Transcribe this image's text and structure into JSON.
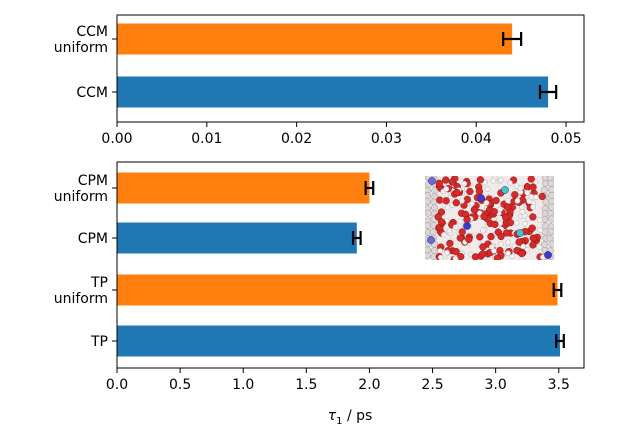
{
  "chart_data": [
    {
      "type": "bar",
      "orientation": "horizontal",
      "categories": [
        "CCM uniform",
        "CCM"
      ],
      "category_labels": [
        [
          "CCM",
          "uniform"
        ],
        [
          "CCM"
        ]
      ],
      "values": [
        0.044,
        0.048
      ],
      "errors": [
        0.001,
        0.0009
      ],
      "colors": [
        "#ff7f0e",
        "#1f77b4"
      ],
      "xlim": [
        0,
        0.052
      ],
      "xticks": [
        0.0,
        0.01,
        0.02,
        0.03,
        0.04,
        0.05
      ],
      "xtick_labels": [
        "0.00",
        "0.01",
        "0.02",
        "0.03",
        "0.04",
        "0.05"
      ],
      "xlabel": "",
      "ylabel": "",
      "grid": false
    },
    {
      "type": "bar",
      "orientation": "horizontal",
      "categories": [
        "CPM uniform",
        "CPM",
        "TP uniform",
        "TP"
      ],
      "category_labels": [
        [
          "CPM",
          "uniform"
        ],
        [
          "CPM"
        ],
        [
          "TP",
          "uniform"
        ],
        [
          "TP"
        ]
      ],
      "values": [
        2.0,
        1.9,
        3.49,
        3.51
      ],
      "errors": [
        0.03,
        0.03,
        0.03,
        0.03
      ],
      "colors": [
        "#ff7f0e",
        "#1f77b4",
        "#ff7f0e",
        "#1f77b4"
      ],
      "xlim": [
        0,
        3.7
      ],
      "xticks": [
        0.0,
        0.5,
        1.0,
        1.5,
        2.0,
        2.5,
        3.0,
        3.5
      ],
      "xtick_labels": [
        "0.0",
        "0.5",
        "1.0",
        "1.5",
        "2.0",
        "2.5",
        "3.0",
        "3.5"
      ],
      "xlabel": "τ₁ / ps",
      "xlabel_symbol": "τ",
      "xlabel_subscript": "1",
      "xlabel_unit": " / ps",
      "ylabel": "",
      "grid": false,
      "inset": "molecular-simulation-snapshot"
    }
  ]
}
